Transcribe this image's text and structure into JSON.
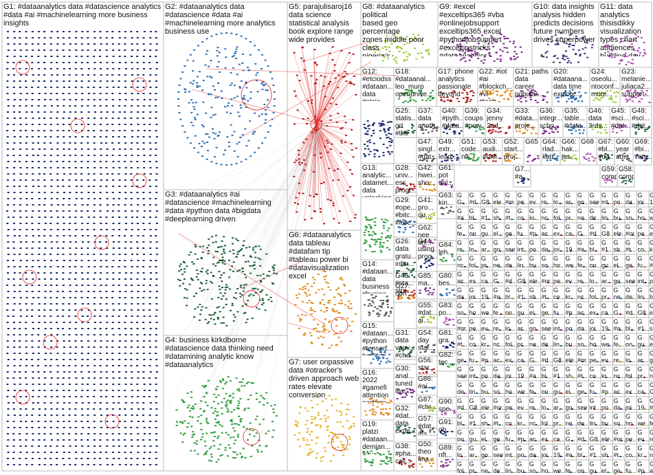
{
  "colors": {
    "background": "#ffffff",
    "box_border": "#b8b8b8",
    "edge_red": "#e02020",
    "edge_gray": "#c8c8c8",
    "g1_nodes": "#1a2a6e",
    "g2_nodes": "#2a6fb5",
    "g3_nodes": "#1f5e3a",
    "g4_nodes": "#2e9b3e",
    "g5_nodes": "#b01818",
    "g6_nodes": "#e08a1a",
    "g7_nodes": "#e6b220",
    "g8_nodes": "#9ccc3a",
    "g9_nodes": "#7a2a8a",
    "g10_nodes": "#3a3a7a",
    "g11_nodes": "#b050b0"
  },
  "groups": [
    {
      "id": "G1",
      "text": "G1: #dataanalytics data #datascience analytics\n#data #ai #machinelearning more business\ninsights"
    },
    {
      "id": "G2",
      "text": "G2: #dataanalytics data\n#datascience #data #ai\n#machinelearning more analytics\nbusiness use"
    },
    {
      "id": "G3",
      "text": "G3: #dataanalytics #ai\n#datascience #machinelearning\n#data #python data #bigdata\n#deeplearning driven"
    },
    {
      "id": "G4",
      "text": "G4: business kirkdborne\n#datascience data thinking need\n#datamining analytic know\n#dataanalytics"
    },
    {
      "id": "G5",
      "text": "G5: parajulisaroj16\ndata science\nstatistical analysis\nbook explore range\nwide provides"
    },
    {
      "id": "G6",
      "text": "G6: #dataanalytics\ndata tableau\n#datafam tip\n#tableau power bi\n#datavisualization\nexcel"
    },
    {
      "id": "G7",
      "text": "G7: user onpassive\ndata #otracker's\ndriven approach web\nrates elevate\nconversion"
    },
    {
      "id": "G8",
      "text": "G8: #dataanalytics political\nbased geo percentage\nzones middle poor class\nnigeria's"
    },
    {
      "id": "G9",
      "text": "G9: #excel\n#exceltips365 #vba\n#onlinejobsupport\nexceltips365 excel\n#pythonjobsupport\n#exceltipstricks\n#dataanalytics..."
    },
    {
      "id": "G10",
      "text": "G10: data insights\nanalysis hidden\npredicts decisions\nfuture numbers\ndrives superpower"
    },
    {
      "id": "G11",
      "text": "G11: data\nanalytics\nthisisdikky\nvisualization\ntypes chart\naudiences\nbuilding day..."
    },
    {
      "id": "G12",
      "text": "G12:\n#etciodss\n#dataan...\ndata\n#etcio\net_cio\nndtvindia\neconom...\ntimesofi..."
    },
    {
      "id": "G13",
      "text": "G13:\nanalytic...\ndatamet...\ndata\nunlocking\ncomple...\nadvanc...\nclarity\nbrillian..."
    },
    {
      "id": "G14",
      "text": "G14:\n#dataan...\ndata\nbusiness\n#busine...\n#ai\ninsights..."
    },
    {
      "id": "G15",
      "text": "G15:\n#dataan...\n#python\n#tensorf...\nhacking\n#100da..."
    },
    {
      "id": "G16",
      "text": "G16:\n2022\n#gamefi\nattention\nperform...\nq4..."
    },
    {
      "id": "G17",
      "text": "G17: phone\nanalytics\npassionate\nbeyond"
    },
    {
      "id": "G18",
      "text": "G18:\n#dataanal...\nleo_murp\nopenunive..."
    },
    {
      "id": "G19",
      "text": "G19:\nplatzi\n#dataan...\ndemian...\nhoy..."
    },
    {
      "id": "G20",
      "text": "G20:\n#dataana...\ndata time\nexplore..."
    },
    {
      "id": "G21",
      "text": "G21: paths data\ncareer\npopular..."
    },
    {
      "id": "G22",
      "text": "G22: #iot\n#ai\n#blockch...\n#vr #tech..."
    },
    {
      "id": "G23",
      "text": "G23:\nmelanie...\njuliaca2...\nsupport..."
    },
    {
      "id": "G24",
      "text": "G24:\noseolu...\nntoconf...\nmore..."
    },
    {
      "id": "G25",
      "text": "G25:\nstatis...\ngrt\n#the\ngrtda..."
    },
    {
      "id": "G26",
      "text": "G26:\ndata\ngratu...\ninfer..."
    },
    {
      "id": "G27",
      "text": "G27:\nrion"
    },
    {
      "id": "G28",
      "text": "G28:\nuniv...\ness\nprogr..."
    },
    {
      "id": "G29",
      "text": "G29:\n#ope...\n#bitc...\n#free..."
    },
    {
      "id": "G30",
      "text": "G30:\nanal...\ntuned\nlive..."
    },
    {
      "id": "G31",
      "text": "G31:\ndata\nveuv...\n#cha..."
    },
    {
      "id": "G32",
      "text": "G32:\n#dat...\ndata\nexpe..."
    },
    {
      "id": "G33",
      "text": "G33:\n#data...\nproje..."
    },
    {
      "id": "G34",
      "text": "G34:\njenny\n2nd..."
    },
    {
      "id": "G35",
      "text": "G35:\ntable...\n#data..."
    },
    {
      "id": "G36",
      "text": "G36:\nintegr...\nscho..."
    },
    {
      "id": "G37",
      "text": "G37:\ndata\nanoth..."
    },
    {
      "id": "G38",
      "text": "G38:\n#pha...\ncall..."
    },
    {
      "id": "G39",
      "text": "G39:\ncoups\n#pow..."
    },
    {
      "id": "G40",
      "text": "G40:\n#pyth...\n#data..."
    },
    {
      "id": "G41",
      "text": "G41:\npro...\nqu..."
    },
    {
      "id": "G42",
      "text": "G42:\nhwei...\nsho..."
    },
    {
      "id": "G43",
      "text": "G43:\n#sta...\nstpi..."
    },
    {
      "id": "G44",
      "text": "G44:\nusing\nprog..."
    },
    {
      "id": "G45",
      "text": "G45:\n#sci...\n#dat..."
    },
    {
      "id": "G46",
      "text": "G46:\ndata\n3rds..."
    },
    {
      "id": "G47",
      "text": "G47:\nsingl...\n#dat..."
    },
    {
      "id": "G48",
      "text": "G48:\n#sci...\n#dat..."
    },
    {
      "id": "G49",
      "text": "G49:\nextr...\nlead..."
    },
    {
      "id": "G50",
      "text": "G50:\ntheo\nfina..."
    },
    {
      "id": "G51",
      "text": "G51:\ncode...\nnft..."
    },
    {
      "id": "G52",
      "text": "G52:\nstart...\nproj..."
    },
    {
      "id": "G53",
      "text": "G53:\naudi...\n#onli..."
    },
    {
      "id": "G54",
      "text": "G54:\nday\nstar..."
    },
    {
      "id": "G55",
      "text": "G55:\n#dat...\nai..."
    },
    {
      "id": "G56",
      "text": "G56:\nstar..."
    },
    {
      "id": "G57",
      "text": "G57:\n#dat...\nafx..."
    },
    {
      "id": "G58",
      "text": "G58:\ncompl..."
    },
    {
      "id": "G59",
      "text": "G59:\ncomp..."
    },
    {
      "id": "G60",
      "text": "G60:\nyear\nad..."
    },
    {
      "id": "G61",
      "text": "G61:\npot\nunl..."
    },
    {
      "id": "G62",
      "text": "G62:\nnee\nori..."
    },
    {
      "id": "G63",
      "text": "G63:\nkin..."
    },
    {
      "id": "G64",
      "text": "G64:\nrlad...\nkati..."
    },
    {
      "id": "G65",
      "text": "G65"
    },
    {
      "id": "G66",
      "text": "G66:\nhak...\njas..."
    },
    {
      "id": "G67",
      "text": "G67:\n#bl...\n#da..."
    },
    {
      "id": "G68",
      "text": "G68"
    },
    {
      "id": "G69",
      "text": "G69:\n#bi...\nven..."
    },
    {
      "id": "G70",
      "text": "G7...\n#a..."
    },
    {
      "id": "G80",
      "text": "G80:\nbes..."
    },
    {
      "id": "G81",
      "text": "G81:\ngra..."
    },
    {
      "id": "G82",
      "text": "G82:\ntec..."
    },
    {
      "id": "G83",
      "text": "G83:\npo..."
    },
    {
      "id": "G84",
      "text": "G84:\nleh..."
    },
    {
      "id": "G85",
      "text": "G85:\nma..."
    },
    {
      "id": "G86",
      "text": "G86:\n#ai..."
    },
    {
      "id": "G87",
      "text": "G87:\n#chr..."
    },
    {
      "id": "G88",
      "text": "G88:\ncha..."
    },
    {
      "id": "G89",
      "text": "G89:\nnft..."
    },
    {
      "id": "G90",
      "text": "G90:\nspe..."
    },
    {
      "id": "G91",
      "text": "G91:\nob..."
    }
  ],
  "tiny_cell_labels": [
    "G...",
    "#d...",
    "G8...",
    "ele...",
    "#or...",
    "pe...",
    "ev...",
    "re...",
    "lo...",
    "ar...",
    "go...",
    "see",
    "int...",
    "po...",
    "da...",
    "joi...",
    "19...",
    "#a...",
    "bl...",
    "#1...",
    "sh...",
    "#t...",
    "co...",
    "kr...",
    "nc...",
    "fol...",
    "pr...",
    "ne...",
    "de...",
    "lin...",
    "bu...",
    "so...",
    "ho...",
    "we...",
    "fe...",
    "on...",
    "gu...",
    "el...",
    "ge...",
    "fu...",
    "#p...",
    "ac...",
    "ex...",
    "ca..."
  ]
}
